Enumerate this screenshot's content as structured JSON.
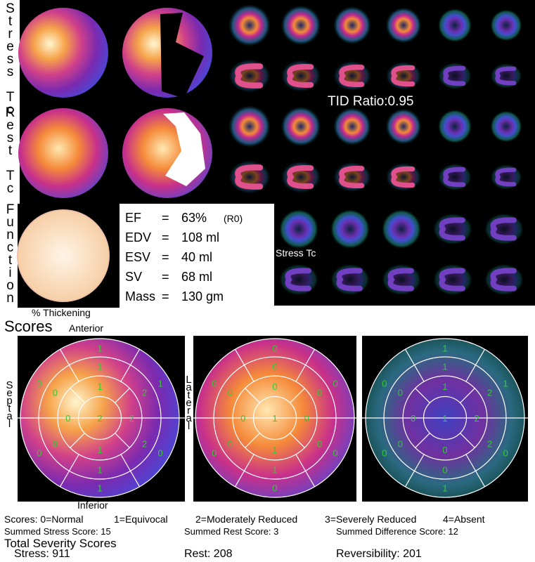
{
  "side_labels": [
    "Stress Tc",
    "Rest Tc",
    "Function"
  ],
  "tid_ratio": "TID Ratio:0.95",
  "function_overlay": "Stress Tc",
  "thickening_label": "% Thickening",
  "metrics": [
    [
      "EF",
      "=",
      "63%",
      "(R0)"
    ],
    [
      "EDV",
      "=",
      "108 ml"
    ],
    [
      "ESV",
      "=",
      "40 ml"
    ],
    [
      "SV",
      "=",
      "68 ml"
    ],
    [
      "Mass",
      "=",
      "130 gm"
    ]
  ],
  "scores_title": "Scores",
  "orientation": {
    "anterior": "Anterior",
    "septal": "Septal",
    "lateral": "Lateral",
    "inferior": "Inferior"
  },
  "bullseyes": [
    {
      "name": "stress",
      "basal": [
        1,
        0,
        0,
        1,
        0,
        1
      ],
      "mid": [
        1,
        0,
        0,
        1,
        2,
        2
      ],
      "apical": [
        1,
        0,
        1,
        2
      ],
      "apex": 2
    },
    {
      "name": "rest",
      "basal": [
        0,
        0,
        0,
        0,
        0,
        0
      ],
      "mid": [
        0,
        0,
        0,
        1,
        0,
        0
      ],
      "apical": [
        0,
        0,
        1,
        0
      ],
      "apex": 1
    },
    {
      "name": "difference",
      "basal": [
        1,
        0,
        0,
        1,
        0,
        1
      ],
      "mid": [
        1,
        0,
        0,
        0,
        2,
        2
      ],
      "apical": [
        1,
        0,
        0,
        2
      ],
      "apex": 1
    }
  ],
  "legend": [
    "Scores:  0=Normal",
    "1=Equivocal",
    "2=Moderately Reduced",
    "3=Severely Reduced",
    "4=Absent"
  ],
  "summed": [
    "Summed Stress Score: 15",
    "Summed Rest Score: 3",
    "Summed Difference Score: 12"
  ],
  "severity_title": "Total Severity Scores",
  "severity": [
    "Stress: 911",
    "Rest: 208",
    "Reversibility: 201"
  ]
}
